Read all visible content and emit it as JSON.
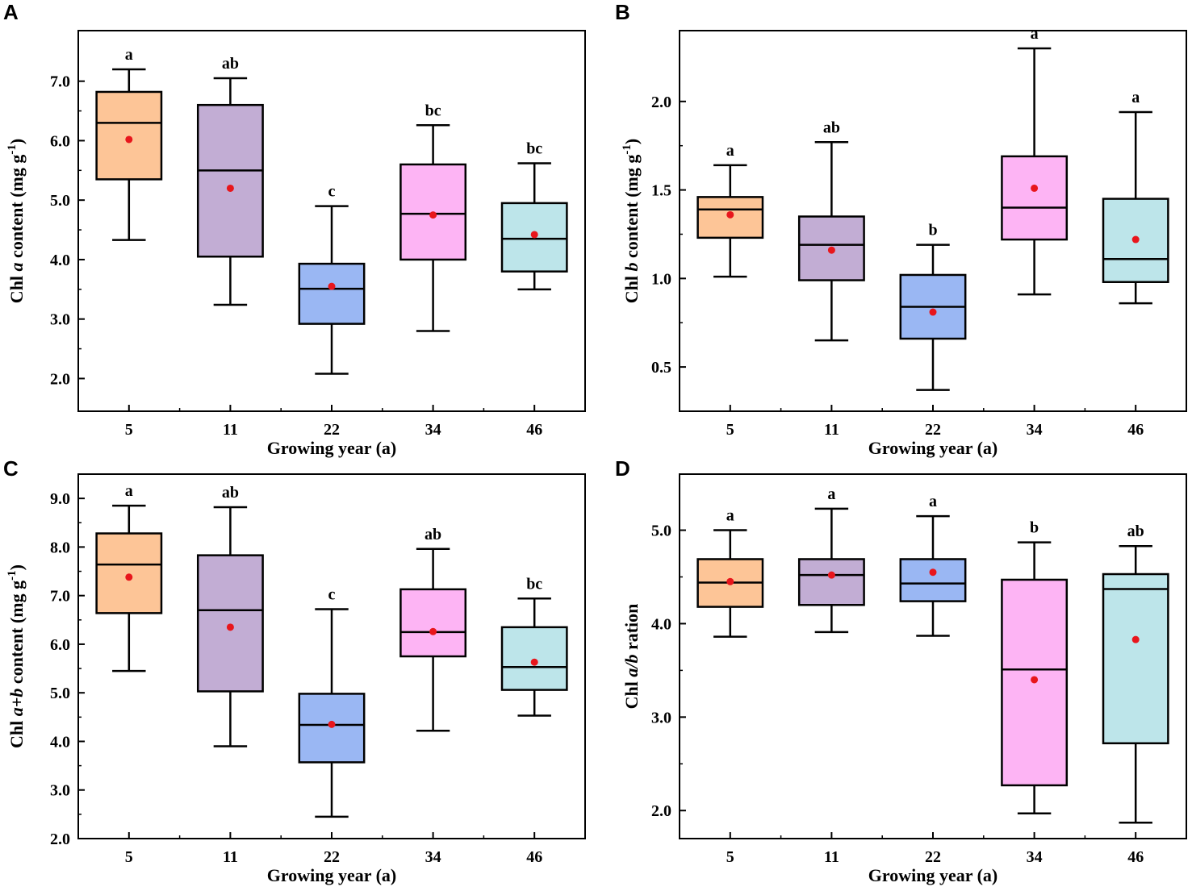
{
  "colors": {
    "orange": "#FDC597",
    "purple": "#C2ADD4",
    "blue": "#9AB7F3",
    "pink": "#FDB4F4",
    "cyan": "#BDE5EA",
    "mean_marker": "#E8161C",
    "line": "#000000"
  },
  "chart_data": [
    {
      "panel": "A",
      "type": "box",
      "xlabel": "Growing year (a)",
      "ylabel": {
        "prefix": "Chl ",
        "italic": "a",
        "suffix": " content  (mg g",
        "sup": "-1",
        "close": ")"
      },
      "categories": [
        "5",
        "11",
        "22",
        "34",
        "46"
      ],
      "ylim": [
        1.45,
        7.85
      ],
      "yticks": [
        2.0,
        3.0,
        4.0,
        5.0,
        6.0,
        7.0
      ],
      "ytick_labels": [
        "2.0",
        "3.0",
        "4.0",
        "5.0",
        "6.0",
        "7.0"
      ],
      "boxes": [
        {
          "category": "5",
          "whisker_low": 4.33,
          "q1": 5.35,
          "median": 6.3,
          "q3": 6.82,
          "whisker_high": 7.2,
          "mean": 6.02,
          "sig": "a",
          "color": "orange"
        },
        {
          "category": "11",
          "whisker_low": 3.24,
          "q1": 4.05,
          "median": 5.5,
          "q3": 6.6,
          "whisker_high": 7.05,
          "mean": 5.2,
          "sig": "ab",
          "color": "purple"
        },
        {
          "category": "22",
          "whisker_low": 2.08,
          "q1": 2.92,
          "median": 3.51,
          "q3": 3.93,
          "whisker_high": 4.9,
          "mean": 3.55,
          "sig": "c",
          "color": "blue"
        },
        {
          "category": "34",
          "whisker_low": 2.8,
          "q1": 4.0,
          "median": 4.77,
          "q3": 5.6,
          "whisker_high": 6.26,
          "mean": 4.75,
          "sig": "bc",
          "color": "pink"
        },
        {
          "category": "46",
          "whisker_low": 3.5,
          "q1": 3.8,
          "median": 4.35,
          "q3": 4.95,
          "whisker_high": 5.62,
          "mean": 4.42,
          "sig": "bc",
          "color": "cyan"
        }
      ]
    },
    {
      "panel": "B",
      "type": "box",
      "xlabel": "Growing year (a)",
      "ylabel": {
        "prefix": "Chl ",
        "italic": "b",
        "suffix": " content (mg g",
        "sup": "-1",
        "close": ")"
      },
      "categories": [
        "5",
        "11",
        "22",
        "34",
        "46"
      ],
      "ylim": [
        0.25,
        2.4
      ],
      "yticks": [
        0.5,
        1.0,
        1.5,
        2.0
      ],
      "ytick_labels": [
        "0.5",
        "1.0",
        "1.5",
        "2.0"
      ],
      "boxes": [
        {
          "category": "5",
          "whisker_low": 1.01,
          "q1": 1.23,
          "median": 1.39,
          "q3": 1.46,
          "whisker_high": 1.64,
          "mean": 1.36,
          "sig": "a",
          "color": "orange"
        },
        {
          "category": "11",
          "whisker_low": 0.65,
          "q1": 0.99,
          "median": 1.19,
          "q3": 1.35,
          "whisker_high": 1.77,
          "mean": 1.16,
          "sig": "ab",
          "color": "purple"
        },
        {
          "category": "22",
          "whisker_low": 0.37,
          "q1": 0.66,
          "median": 0.84,
          "q3": 1.02,
          "whisker_high": 1.19,
          "mean": 0.81,
          "sig": "b",
          "color": "blue"
        },
        {
          "category": "34",
          "whisker_low": 0.91,
          "q1": 1.22,
          "median": 1.4,
          "q3": 1.69,
          "whisker_high": 2.3,
          "mean": 1.51,
          "sig": "a",
          "color": "pink"
        },
        {
          "category": "46",
          "whisker_low": 0.86,
          "q1": 0.98,
          "median": 1.11,
          "q3": 1.45,
          "whisker_high": 1.94,
          "mean": 1.22,
          "sig": "a",
          "color": "cyan"
        }
      ]
    },
    {
      "panel": "C",
      "type": "box",
      "xlabel": "Growing year (a)",
      "ylabel": {
        "prefix": "Chl ",
        "italic": "a+b",
        "suffix": " content (mg g",
        "sup": "-1",
        "close": ")"
      },
      "categories": [
        "5",
        "11",
        "22",
        "34",
        "46"
      ],
      "ylim": [
        2.0,
        9.5
      ],
      "yticks": [
        2.0,
        3.0,
        4.0,
        5.0,
        6.0,
        7.0,
        8.0,
        9.0
      ],
      "ytick_labels": [
        "2.0",
        "3.0",
        "4.0",
        "5.0",
        "6.0",
        "7.0",
        "8.0",
        "9.0"
      ],
      "boxes": [
        {
          "category": "5",
          "whisker_low": 5.45,
          "q1": 6.64,
          "median": 7.64,
          "q3": 8.28,
          "whisker_high": 8.85,
          "mean": 7.38,
          "sig": "a",
          "color": "orange"
        },
        {
          "category": "11",
          "whisker_low": 3.9,
          "q1": 5.03,
          "median": 6.7,
          "q3": 7.83,
          "whisker_high": 8.82,
          "mean": 6.35,
          "sig": "ab",
          "color": "purple"
        },
        {
          "category": "22",
          "whisker_low": 2.45,
          "q1": 3.57,
          "median": 4.34,
          "q3": 4.98,
          "whisker_high": 6.72,
          "mean": 4.35,
          "sig": "c",
          "color": "blue"
        },
        {
          "category": "34",
          "whisker_low": 4.22,
          "q1": 5.75,
          "median": 6.25,
          "q3": 7.13,
          "whisker_high": 7.96,
          "mean": 6.26,
          "sig": "ab",
          "color": "pink"
        },
        {
          "category": "46",
          "whisker_low": 4.53,
          "q1": 5.06,
          "median": 5.53,
          "q3": 6.35,
          "whisker_high": 6.94,
          "mean": 5.63,
          "sig": "bc",
          "color": "cyan"
        }
      ]
    },
    {
      "panel": "D",
      "type": "box",
      "xlabel": "Growing year (a)",
      "ylabel": {
        "prefix": "Chl ",
        "italic": "a/b",
        "suffix": " ration",
        "sup": "",
        "close": ""
      },
      "categories": [
        "5",
        "11",
        "22",
        "34",
        "46"
      ],
      "ylim": [
        1.7,
        5.6
      ],
      "yticks": [
        2.0,
        3.0,
        4.0,
        5.0
      ],
      "ytick_labels": [
        "2.0",
        "3.0",
        "4.0",
        "5.0"
      ],
      "boxes": [
        {
          "category": "5",
          "whisker_low": 3.86,
          "q1": 4.18,
          "median": 4.44,
          "q3": 4.69,
          "whisker_high": 5.0,
          "mean": 4.45,
          "sig": "a",
          "color": "orange"
        },
        {
          "category": "11",
          "whisker_low": 3.91,
          "q1": 4.2,
          "median": 4.52,
          "q3": 4.69,
          "whisker_high": 5.23,
          "mean": 4.52,
          "sig": "a",
          "color": "purple"
        },
        {
          "category": "22",
          "whisker_low": 3.87,
          "q1": 4.24,
          "median": 4.43,
          "q3": 4.69,
          "whisker_high": 5.15,
          "mean": 4.55,
          "sig": "a",
          "color": "blue"
        },
        {
          "category": "34",
          "whisker_low": 1.97,
          "q1": 2.27,
          "median": 3.51,
          "q3": 4.47,
          "whisker_high": 4.87,
          "mean": 3.4,
          "sig": "b",
          "color": "pink"
        },
        {
          "category": "46",
          "whisker_low": 1.87,
          "q1": 2.72,
          "median": 4.37,
          "q3": 4.53,
          "whisker_high": 4.83,
          "mean": 3.83,
          "sig": "ab",
          "color": "cyan"
        }
      ]
    }
  ]
}
